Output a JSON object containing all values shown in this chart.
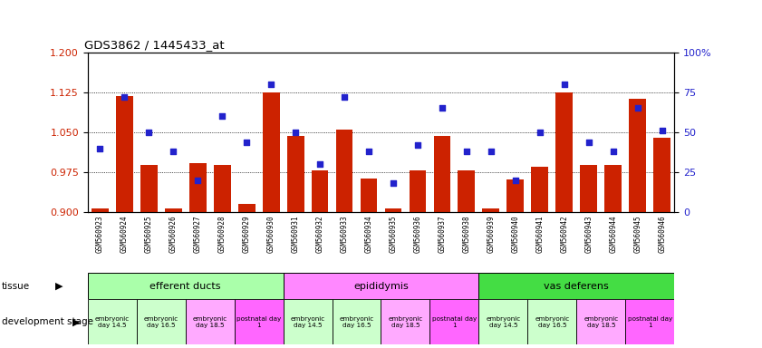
{
  "title": "GDS3862 / 1445433_at",
  "samples": [
    "GSM560923",
    "GSM560924",
    "GSM560925",
    "GSM560926",
    "GSM560927",
    "GSM560928",
    "GSM560929",
    "GSM560930",
    "GSM560931",
    "GSM560932",
    "GSM560933",
    "GSM560934",
    "GSM560935",
    "GSM560936",
    "GSM560937",
    "GSM560938",
    "GSM560939",
    "GSM560940",
    "GSM560941",
    "GSM560942",
    "GSM560943",
    "GSM560944",
    "GSM560945",
    "GSM560946"
  ],
  "bar_values": [
    0.908,
    1.118,
    0.988,
    0.908,
    0.992,
    0.988,
    0.916,
    1.125,
    1.043,
    0.978,
    1.055,
    0.963,
    0.908,
    0.978,
    1.043,
    0.978,
    0.908,
    0.962,
    0.985,
    1.125,
    0.988,
    0.988,
    1.112,
    1.04
  ],
  "percentile_values": [
    40,
    72,
    50,
    38,
    20,
    60,
    44,
    80,
    50,
    30,
    72,
    38,
    18,
    42,
    65,
    38,
    38,
    20,
    50,
    80,
    44,
    38,
    65,
    51
  ],
  "ylim_left": [
    0.9,
    1.2
  ],
  "ylim_right": [
    0,
    100
  ],
  "yticks_left": [
    0.9,
    0.975,
    1.05,
    1.125,
    1.2
  ],
  "yticks_right": [
    0,
    25,
    50,
    75,
    100
  ],
  "bar_color": "#cc2200",
  "dot_color": "#2222cc",
  "tissues": [
    {
      "label": "efferent ducts",
      "start": 0,
      "end": 7,
      "color": "#aaffaa"
    },
    {
      "label": "epididymis",
      "start": 8,
      "end": 15,
      "color": "#ff88ff"
    },
    {
      "label": "vas deferens",
      "start": 16,
      "end": 23,
      "color": "#44dd44"
    }
  ],
  "dev_groups": [
    {
      "label": "embryonic\nday 14.5",
      "start": 0,
      "end": 1,
      "color": "#ccffcc"
    },
    {
      "label": "embryonic\nday 16.5",
      "start": 2,
      "end": 3,
      "color": "#ccffcc"
    },
    {
      "label": "embryonic\nday 18.5",
      "start": 4,
      "end": 5,
      "color": "#ffaaff"
    },
    {
      "label": "postnatal day\n1",
      "start": 6,
      "end": 7,
      "color": "#ff66ff"
    },
    {
      "label": "embryonic\nday 14.5",
      "start": 8,
      "end": 9,
      "color": "#ccffcc"
    },
    {
      "label": "embryonic\nday 16.5",
      "start": 10,
      "end": 11,
      "color": "#ccffcc"
    },
    {
      "label": "embryonic\nday 18.5",
      "start": 12,
      "end": 13,
      "color": "#ffaaff"
    },
    {
      "label": "postnatal day\n1",
      "start": 14,
      "end": 15,
      "color": "#ff66ff"
    },
    {
      "label": "embryonic\nday 14.5",
      "start": 16,
      "end": 17,
      "color": "#ccffcc"
    },
    {
      "label": "embryonic\nday 16.5",
      "start": 18,
      "end": 19,
      "color": "#ccffcc"
    },
    {
      "label": "embryonic\nday 18.5",
      "start": 20,
      "end": 21,
      "color": "#ffaaff"
    },
    {
      "label": "postnatal day\n1",
      "start": 22,
      "end": 23,
      "color": "#ff66ff"
    }
  ]
}
